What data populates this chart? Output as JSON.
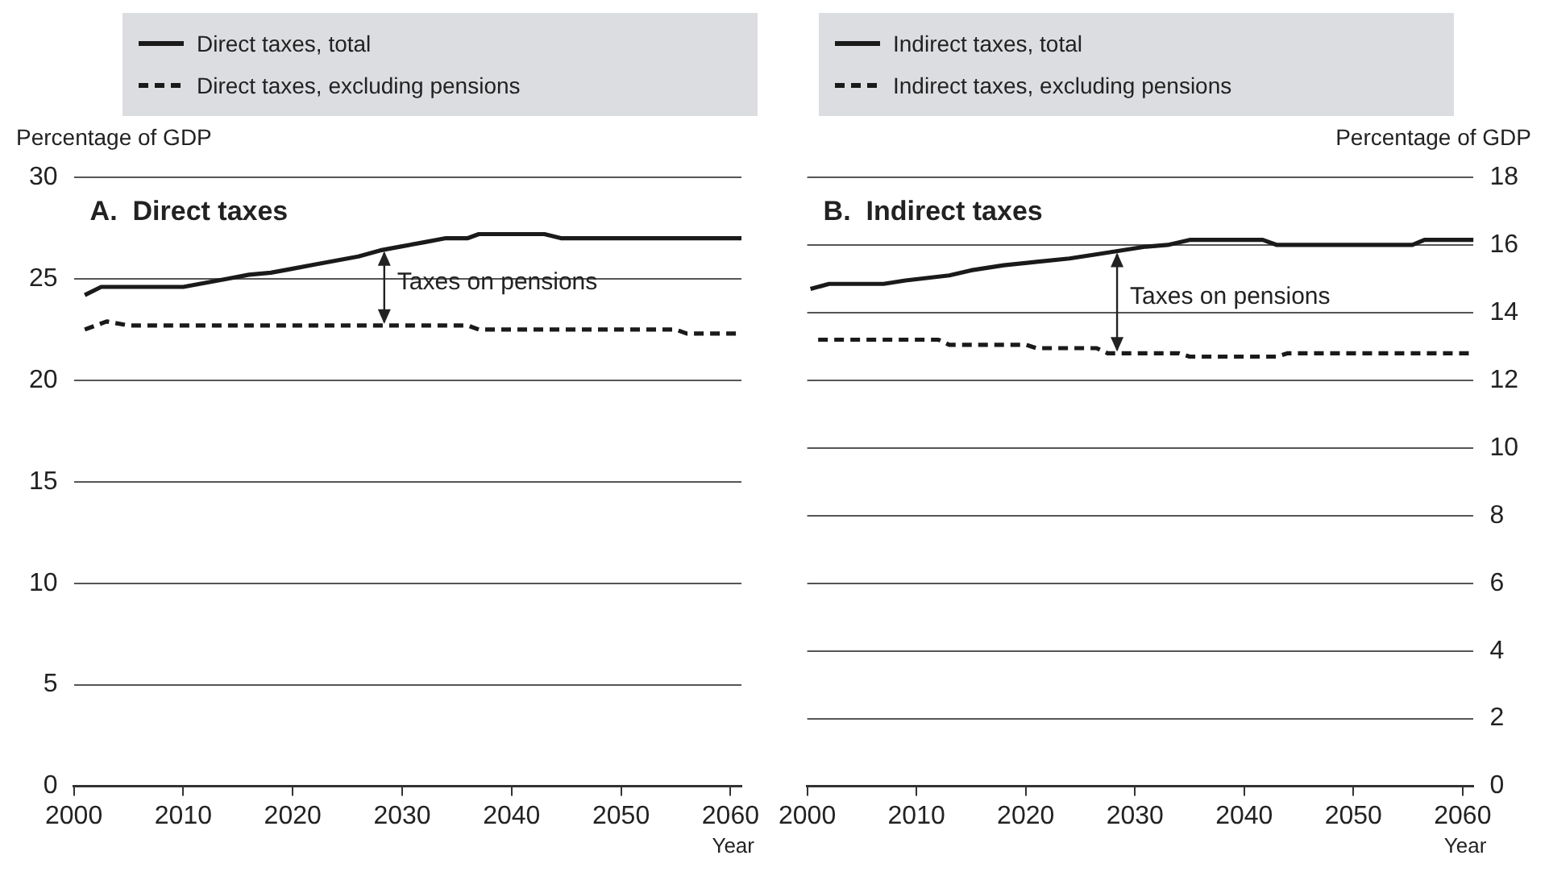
{
  "chart_data": [
    {
      "type": "line",
      "title": "A.  Direct taxes",
      "ylabel": "Percentage of GDP",
      "xlabel": "Year",
      "xlim": [
        2000,
        2061
      ],
      "xticks": [
        2000,
        2010,
        2020,
        2030,
        2040,
        2050,
        2060
      ],
      "ylim": [
        0,
        30
      ],
      "yticks": [
        0,
        5,
        10,
        15,
        20,
        25,
        30
      ],
      "grid": "y",
      "legend": "top",
      "annotations": [
        "Taxes on pensions"
      ],
      "series": [
        {
          "name": "Direct taxes, total",
          "color": "#1a1a1a",
          "line_style": "solid",
          "x": [
            2001,
            2002.5,
            2010,
            2012,
            2014,
            2016,
            2018,
            2020,
            2022,
            2024,
            2026,
            2028,
            2030,
            2032,
            2034,
            2036,
            2037,
            2043,
            2044.5,
            2061
          ],
          "values": [
            24.2,
            24.6,
            24.6,
            24.8,
            25.0,
            25.2,
            25.3,
            25.5,
            25.7,
            25.9,
            26.1,
            26.4,
            26.6,
            26.8,
            27.0,
            27.0,
            27.2,
            27.2,
            27.0,
            27.0
          ]
        },
        {
          "name": "Direct taxes, excluding pensions",
          "color": "#1a1a1a",
          "line_style": "dashed",
          "x": [
            2001,
            2003,
            2005,
            2036,
            2037,
            2055,
            2056,
            2061
          ],
          "values": [
            22.5,
            22.9,
            22.7,
            22.7,
            22.5,
            22.5,
            22.3,
            22.3
          ]
        }
      ]
    },
    {
      "type": "line",
      "title": "B.  Indirect taxes",
      "y2label": "Percentage of GDP",
      "xlabel": "Year",
      "xlim": [
        2000,
        2061
      ],
      "xticks": [
        2000,
        2010,
        2020,
        2030,
        2040,
        2050,
        2060
      ],
      "y2lim": [
        0,
        18
      ],
      "y2ticks": [
        0,
        2,
        4,
        6,
        8,
        10,
        12,
        14,
        16,
        18
      ],
      "grid": "y",
      "legend": "top",
      "annotations": [
        "Taxes on pensions"
      ],
      "series": [
        {
          "name": "Indirect taxes, total",
          "axis": "y2",
          "color": "#1a1a1a",
          "line_style": "solid",
          "x": [
            2000.3,
            2002,
            2007,
            2009,
            2013,
            2015,
            2018,
            2021,
            2024,
            2027,
            2029,
            2031,
            2033,
            2035,
            2041.7,
            2043,
            2055.4,
            2056.5,
            2061
          ],
          "values": [
            14.7,
            14.85,
            14.85,
            14.95,
            15.1,
            15.25,
            15.4,
            15.5,
            15.6,
            15.75,
            15.85,
            15.95,
            16.0,
            16.15,
            16.15,
            16.0,
            16.0,
            16.15,
            16.15
          ]
        },
        {
          "name": "Indirect taxes, excluding pensions",
          "axis": "y2",
          "color": "#1a1a1a",
          "line_style": "dashed",
          "x": [
            2001,
            2012,
            2013,
            2020,
            2021,
            2026.5,
            2027.5,
            2034,
            2035,
            2043,
            2044,
            2061
          ],
          "values": [
            13.2,
            13.2,
            13.05,
            13.05,
            12.95,
            12.95,
            12.8,
            12.8,
            12.7,
            12.7,
            12.8,
            12.8
          ]
        }
      ]
    }
  ]
}
